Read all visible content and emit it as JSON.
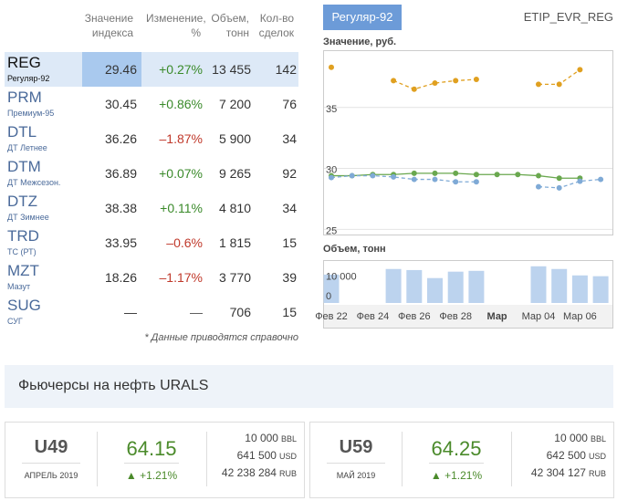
{
  "table": {
    "headers": [
      "Значение индекса",
      "Изменение, %",
      "Объем, тонн",
      "Кол-во сделок"
    ],
    "rows": [
      {
        "code": "REG",
        "name": "Регуляр-92",
        "value": "29.46",
        "change": "+0.27%",
        "volume": "13 455",
        "deals": "142"
      },
      {
        "code": "PRM",
        "name": "Премиум-95",
        "value": "30.45",
        "change": "+0.86%",
        "volume": "7 200",
        "deals": "76"
      },
      {
        "code": "DTL",
        "name": "ДТ Летнее",
        "value": "36.26",
        "change": "–1.87%",
        "volume": "5 900",
        "deals": "34"
      },
      {
        "code": "DTM",
        "name": "ДТ Межсезон.",
        "value": "36.89",
        "change": "+0.07%",
        "volume": "9 265",
        "deals": "92"
      },
      {
        "code": "DTZ",
        "name": "ДТ Зимнее",
        "value": "38.38",
        "change": "+0.11%",
        "volume": "4 810",
        "deals": "34"
      },
      {
        "code": "TRD",
        "name": "ТС (РТ)",
        "value": "33.95",
        "change": "–0.6%",
        "volume": "1 815",
        "deals": "15"
      },
      {
        "code": "MZT",
        "name": "Мазут",
        "value": "18.26",
        "change": "–1.17%",
        "volume": "3 770",
        "deals": "39"
      },
      {
        "code": "SUG",
        "name": "СУГ",
        "value": "—",
        "change": "—",
        "volume": "706",
        "deals": "15"
      }
    ],
    "note": "* Данные приводятся справочно"
  },
  "panel": {
    "tab": "Регуляр-92",
    "code": "ETIP_EVR_REG"
  },
  "price_chart": {
    "type": "line",
    "title": "Значение, руб.",
    "series": [
      {
        "color": "#e0a020",
        "style": "dashed",
        "values": [
          38.3,
          null,
          null,
          37.2,
          36.5,
          37.0,
          37.2,
          37.3,
          null,
          null,
          36.9,
          36.9,
          38.1,
          null
        ]
      },
      {
        "color": "#6aa84f",
        "style": "solid",
        "values": [
          29.4,
          29.4,
          29.5,
          29.5,
          29.6,
          29.6,
          29.6,
          29.5,
          29.5,
          29.5,
          29.4,
          29.2,
          29.2,
          null
        ]
      },
      {
        "color": "#7faad6",
        "style": "dashed",
        "values": [
          29.25,
          29.4,
          29.4,
          29.3,
          29.1,
          29.1,
          28.9,
          28.9,
          null,
          null,
          28.5,
          28.4,
          28.95,
          29.1
        ]
      }
    ],
    "ylim": [
      24.5,
      39.7
    ],
    "yticks": [
      25,
      30,
      35
    ],
    "grid": true
  },
  "volume_chart": {
    "type": "bar",
    "title": "Объем, тонн",
    "categories": [
      "Фев 22",
      null,
      "Фев 24",
      null,
      "Фев 26",
      null,
      "Фев 28",
      null,
      "Мар",
      null,
      "Мар 04",
      null,
      "Мар 06",
      null
    ],
    "values": [
      10600,
      null,
      null,
      12700,
      12300,
      9300,
      11700,
      12000,
      null,
      null,
      13700,
      12700,
      10300,
      10000
    ],
    "color": "#bcd3ee",
    "ylim": [
      0,
      15000
    ],
    "yticks": [
      0,
      {
        "value": 10000,
        "label": "10 000"
      }
    ]
  },
  "futures": {
    "title": "Фьючерсы на нефть URALS",
    "contracts": [
      {
        "code": "U49",
        "month": "АПРЕЛЬ 2019",
        "price": "64.15",
        "change": "+1.21%",
        "amounts": [
          {
            "value": "10 000",
            "unit": "BBL"
          },
          {
            "value": "641 500",
            "unit": "USD"
          },
          {
            "value": "42 238 284",
            "unit": "RUB"
          }
        ]
      },
      {
        "code": "U59",
        "month": "МАЙ 2019",
        "price": "64.25",
        "change": "+1.21%",
        "amounts": [
          {
            "value": "10 000",
            "unit": "BBL"
          },
          {
            "value": "642 500",
            "unit": "USD"
          },
          {
            "value": "42 304 127",
            "unit": "RUB"
          }
        ]
      }
    ]
  }
}
